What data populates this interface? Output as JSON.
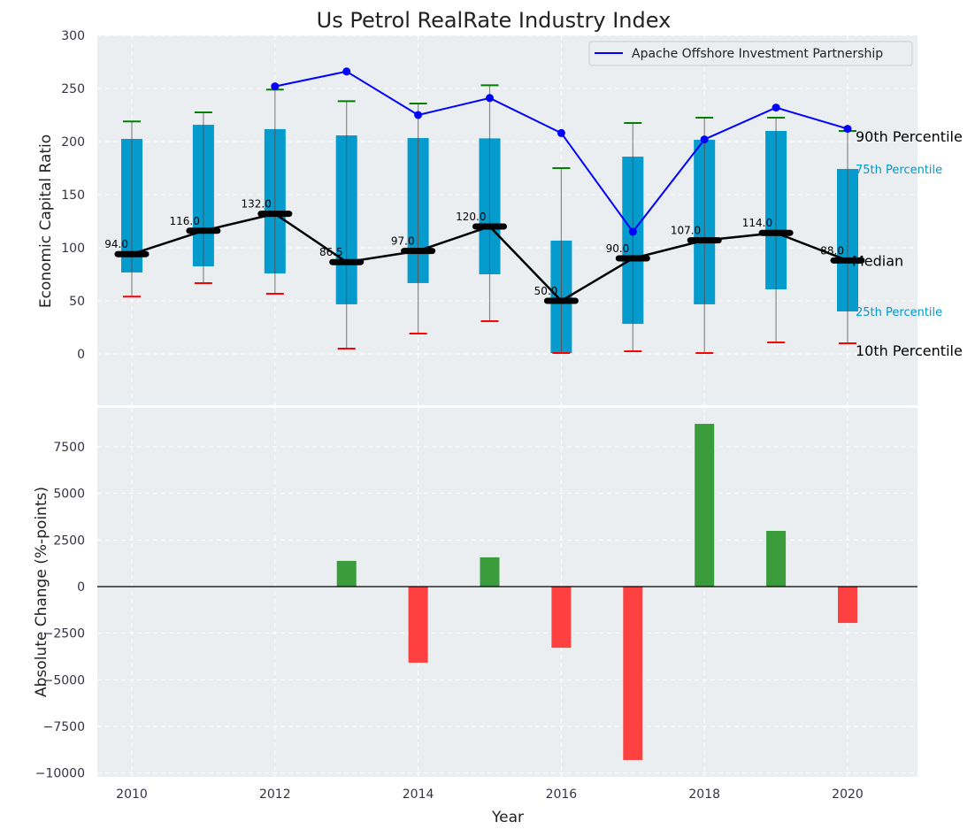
{
  "chart_data": [
    {
      "type": "box",
      "title": "Us Petrol RealRate Industry Index",
      "xlabel": "",
      "ylabel": "Economic Capital Ratio",
      "ylim": [
        -48,
        300
      ],
      "xlim": [
        2009.5,
        2021
      ],
      "yticks": [
        0,
        50,
        100,
        150,
        200,
        250,
        300
      ],
      "grid": true,
      "years": [
        2010,
        2011,
        2012,
        2013,
        2014,
        2015,
        2016,
        2017,
        2018,
        2019,
        2020
      ],
      "p10": [
        54,
        66.7,
        56.7,
        5,
        19.2,
        30.8,
        0.8,
        2.5,
        0.8,
        10.8,
        10
      ],
      "p25": [
        76.7,
        82.5,
        75.8,
        46.7,
        66.7,
        75,
        0.8,
        28.3,
        46.7,
        60.8,
        40
      ],
      "median": [
        94,
        116,
        132,
        86.5,
        97,
        120,
        50,
        90,
        107,
        114,
        88
      ],
      "median_labels": [
        "94.0",
        "116.0",
        "132.0",
        "86.5",
        "97.0",
        "120.0",
        "50.0",
        "90.0",
        "107.0",
        "114.0",
        "88.0"
      ],
      "p75": [
        202.5,
        215.8,
        211.7,
        205.8,
        203.3,
        203,
        106.7,
        185.8,
        201.7,
        210,
        174.2
      ],
      "p90": [
        219,
        227.5,
        249,
        238,
        235.8,
        253,
        175,
        217.5,
        222.5,
        222.5,
        210
      ],
      "overlay_series": {
        "name": "Apache Offshore Investment Partnership",
        "years": [
          2012,
          2013,
          2014,
          2015,
          2016,
          2017,
          2018,
          2019,
          2020
        ],
        "values": [
          252,
          266,
          225,
          241,
          208,
          115,
          202,
          232,
          212
        ],
        "color": "#0000ff"
      },
      "legend": {
        "placement": "top-right",
        "entries": [
          "Apache Offshore Investment Partnership"
        ]
      },
      "annotations": {
        "p90": "90th Percentile",
        "p75": "75th Percentile",
        "median": "Median",
        "p25": "25th Percentile",
        "p10": "10th Percentile"
      },
      "colors": {
        "box": "#0099cc",
        "p90_cap": "#008000",
        "p10_cap": "#ff0000",
        "median": "#000000"
      }
    },
    {
      "type": "bar",
      "xlabel": "Year",
      "ylabel": "Absolute Change (%-points)",
      "ylim": [
        -10200,
        9630
      ],
      "yticks": [
        -10000,
        -7500,
        -5000,
        -2500,
        0,
        2500,
        5000,
        7500
      ],
      "ytick_labels": [
        "−10000",
        "−7500",
        "−5000",
        "−2500",
        "0",
        "2500",
        "5000",
        "7500"
      ],
      "xticks": [
        2010,
        2012,
        2014,
        2016,
        2018,
        2020
      ],
      "years": [
        2013,
        2014,
        2015,
        2016,
        2017,
        2018,
        2019,
        2020
      ],
      "values": [
        1380,
        -4080,
        1570,
        -3280,
        -9300,
        8730,
        2990,
        -1950
      ],
      "colors": {
        "positive": "#3a9c3a",
        "negative": "#ff4040"
      }
    }
  ]
}
